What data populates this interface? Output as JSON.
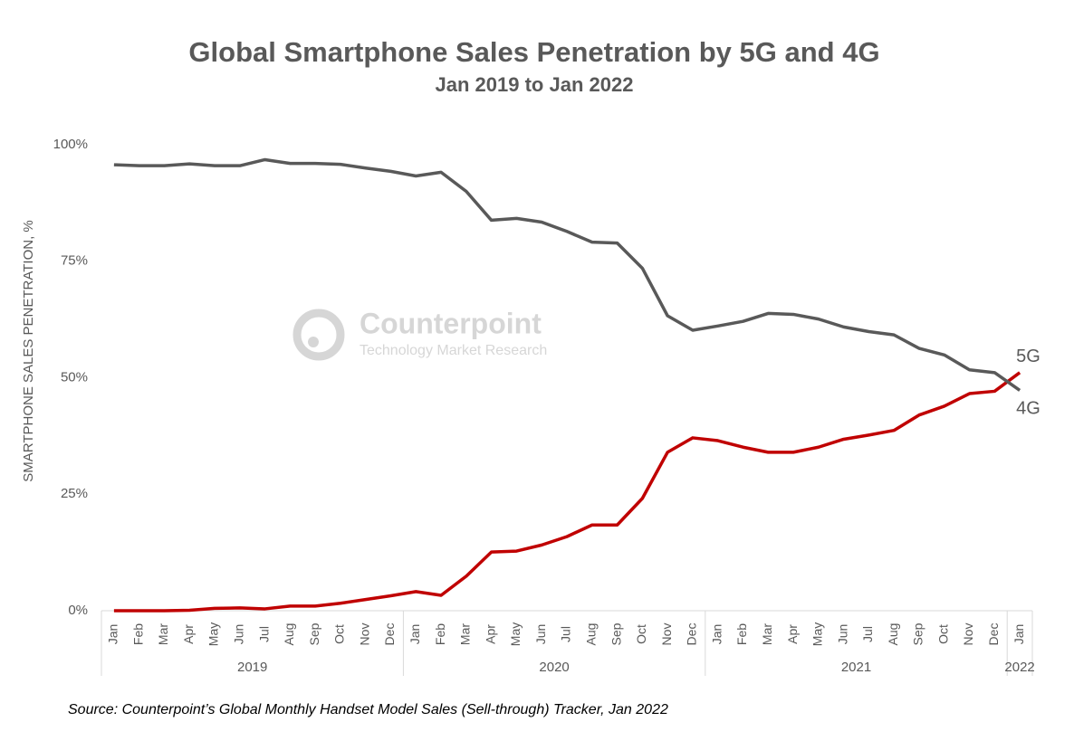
{
  "chart_data": {
    "type": "line",
    "title": "Global Smartphone Sales Penetration by 5G and 4G",
    "subtitle": "Jan 2019 to Jan 2022",
    "y_label": "SMARTPHONE SALES PENETRATION, %",
    "source": "Source: Counterpoint’s Global Monthly Handset Model Sales (Sell-through) Tracker, Jan 2022",
    "watermark": [
      "Counterpoint",
      "Technology Market Research"
    ],
    "categories": [
      "Jan",
      "Feb",
      "Mar",
      "Apr",
      "May",
      "Jun",
      "Jul",
      "Aug",
      "Sep",
      "Oct",
      "Nov",
      "Dec",
      "Jan",
      "Feb",
      "Mar",
      "Apr",
      "May",
      "Jun",
      "Jul",
      "Aug",
      "Sep",
      "Oct",
      "Nov",
      "Dec",
      "Jan",
      "Feb",
      "Mar",
      "Apr",
      "May",
      "Jun",
      "Jul",
      "Aug",
      "Sep",
      "Oct",
      "Nov",
      "Dec",
      "Jan"
    ],
    "year_labels": [
      "2019",
      "2020",
      "2021",
      "2022"
    ],
    "series": [
      {
        "name": "5G",
        "color": "#c00000",
        "values": [
          0,
          0,
          0,
          0.1,
          0.5,
          0.6,
          0.4,
          1.0,
          1.0,
          1.6,
          2.4,
          3.2,
          4.1,
          3.3,
          7.4,
          12.6,
          12.8,
          14.1,
          15.9,
          18.4,
          18.4,
          24.1,
          34.0,
          37.1,
          36.5,
          35.1,
          34.0,
          34.0,
          35.1,
          36.8,
          37.7,
          38.7,
          42.0,
          43.9,
          46.6,
          47.1,
          51.1
        ]
      },
      {
        "name": "4G",
        "color": "#595959",
        "values": [
          95.7,
          95.5,
          95.5,
          95.9,
          95.5,
          95.5,
          96.8,
          96.0,
          96.0,
          95.8,
          95.0,
          94.3,
          93.3,
          94.1,
          90.0,
          83.8,
          84.2,
          83.4,
          81.4,
          79.1,
          78.9,
          73.5,
          63.3,
          60.2,
          61.1,
          62.1,
          63.8,
          63.6,
          62.6,
          60.9,
          59.9,
          59.2,
          56.3,
          54.9,
          51.7,
          51.1,
          47.3
        ]
      }
    ],
    "ylim": [
      0,
      100
    ],
    "yticks": [
      {
        "value": 0,
        "label": "0%"
      },
      {
        "value": 25,
        "label": "25%"
      },
      {
        "value": 50,
        "label": "50%"
      },
      {
        "value": 75,
        "label": "75%"
      },
      {
        "value": 100,
        "label": "100%"
      }
    ]
  }
}
